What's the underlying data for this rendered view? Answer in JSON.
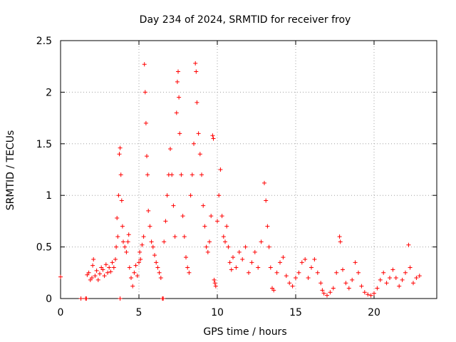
{
  "chart_data": {
    "type": "scatter",
    "title": "Day 234 of 2024, SRMTID for receiver froy",
    "xlabel": "GPS time / hours",
    "ylabel": "SRMTID / TECUs",
    "xlim": [
      0,
      24
    ],
    "ylim": [
      0,
      2.5
    ],
    "x_ticks": [
      0,
      5,
      10,
      15,
      20
    ],
    "x_tick_labels": [
      "0",
      "5",
      "10",
      "15",
      "20"
    ],
    "y_ticks": [
      0,
      0.5,
      1,
      1.5,
      2,
      2.5
    ],
    "y_tick_labels": [
      "0",
      "0.5",
      "1",
      "1.5",
      "2",
      "2.5"
    ],
    "grid": true,
    "marker": "+",
    "series": [
      {
        "name": "SRMTID",
        "color": "#ff0000",
        "points": [
          [
            0.0,
            0.21
          ],
          [
            1.3,
            0.0
          ],
          [
            1.6,
            0.0
          ],
          [
            1.65,
            0.0
          ],
          [
            1.7,
            0.23
          ],
          [
            1.8,
            0.25
          ],
          [
            1.9,
            0.18
          ],
          [
            2.0,
            0.2
          ],
          [
            2.05,
            0.32
          ],
          [
            2.1,
            0.38
          ],
          [
            2.2,
            0.22
          ],
          [
            2.3,
            0.27
          ],
          [
            2.4,
            0.18
          ],
          [
            2.5,
            0.24
          ],
          [
            2.6,
            0.3
          ],
          [
            2.7,
            0.28
          ],
          [
            2.8,
            0.22
          ],
          [
            2.9,
            0.33
          ],
          [
            3.0,
            0.25
          ],
          [
            3.1,
            0.3
          ],
          [
            3.2,
            0.26
          ],
          [
            3.3,
            0.35
          ],
          [
            3.4,
            0.3
          ],
          [
            3.5,
            0.38
          ],
          [
            3.55,
            0.5
          ],
          [
            3.6,
            0.78
          ],
          [
            3.65,
            0.6
          ],
          [
            3.7,
            1.0
          ],
          [
            3.75,
            1.4
          ],
          [
            3.8,
            1.46
          ],
          [
            3.85,
            1.2
          ],
          [
            3.9,
            0.95
          ],
          [
            3.95,
            0.7
          ],
          [
            3.8,
            0.0
          ],
          [
            4.0,
            0.55
          ],
          [
            4.1,
            0.5
          ],
          [
            4.2,
            0.45
          ],
          [
            4.3,
            0.55
          ],
          [
            4.35,
            0.62
          ],
          [
            4.4,
            0.3
          ],
          [
            4.5,
            0.2
          ],
          [
            4.6,
            0.12
          ],
          [
            4.7,
            0.25
          ],
          [
            4.8,
            0.32
          ],
          [
            4.9,
            0.22
          ],
          [
            5.0,
            0.35
          ],
          [
            5.05,
            0.45
          ],
          [
            5.1,
            0.38
          ],
          [
            5.2,
            0.52
          ],
          [
            5.3,
            0.6
          ],
          [
            5.35,
            2.27
          ],
          [
            5.4,
            2.0
          ],
          [
            5.45,
            1.7
          ],
          [
            5.5,
            1.38
          ],
          [
            5.55,
            1.2
          ],
          [
            5.6,
            0.85
          ],
          [
            5.7,
            0.7
          ],
          [
            5.8,
            0.55
          ],
          [
            5.9,
            0.5
          ],
          [
            6.0,
            0.42
          ],
          [
            6.1,
            0.35
          ],
          [
            6.2,
            0.3
          ],
          [
            6.3,
            0.25
          ],
          [
            6.4,
            0.2
          ],
          [
            6.5,
            0.0
          ],
          [
            6.55,
            0.0
          ],
          [
            6.6,
            0.55
          ],
          [
            6.7,
            0.75
          ],
          [
            6.8,
            1.0
          ],
          [
            6.9,
            1.2
          ],
          [
            7.0,
            1.45
          ],
          [
            7.1,
            1.2
          ],
          [
            7.2,
            0.9
          ],
          [
            7.3,
            0.6
          ],
          [
            7.4,
            1.8
          ],
          [
            7.45,
            2.1
          ],
          [
            7.5,
            2.2
          ],
          [
            7.55,
            1.95
          ],
          [
            7.6,
            1.6
          ],
          [
            7.7,
            1.2
          ],
          [
            7.8,
            0.8
          ],
          [
            7.9,
            0.6
          ],
          [
            8.0,
            0.4
          ],
          [
            8.1,
            0.3
          ],
          [
            8.2,
            0.25
          ],
          [
            8.3,
            1.0
          ],
          [
            8.4,
            1.2
          ],
          [
            8.5,
            1.5
          ],
          [
            8.6,
            2.28
          ],
          [
            8.65,
            2.2
          ],
          [
            8.7,
            1.9
          ],
          [
            8.8,
            1.6
          ],
          [
            8.9,
            1.4
          ],
          [
            9.0,
            1.2
          ],
          [
            9.1,
            0.9
          ],
          [
            9.2,
            0.7
          ],
          [
            9.3,
            0.5
          ],
          [
            9.4,
            0.45
          ],
          [
            9.5,
            0.55
          ],
          [
            9.6,
            0.8
          ],
          [
            9.7,
            1.58
          ],
          [
            9.75,
            1.55
          ],
          [
            9.8,
            0.18
          ],
          [
            9.85,
            0.15
          ],
          [
            9.9,
            0.12
          ],
          [
            10.0,
            0.75
          ],
          [
            10.1,
            1.0
          ],
          [
            10.2,
            1.25
          ],
          [
            10.3,
            0.8
          ],
          [
            10.4,
            0.6
          ],
          [
            10.5,
            0.55
          ],
          [
            10.6,
            0.7
          ],
          [
            10.7,
            0.5
          ],
          [
            10.8,
            0.35
          ],
          [
            10.9,
            0.28
          ],
          [
            11.0,
            0.4
          ],
          [
            11.2,
            0.3
          ],
          [
            11.4,
            0.45
          ],
          [
            11.6,
            0.38
          ],
          [
            11.8,
            0.5
          ],
          [
            12.0,
            0.25
          ],
          [
            12.2,
            0.35
          ],
          [
            12.4,
            0.45
          ],
          [
            12.6,
            0.3
          ],
          [
            12.8,
            0.55
          ],
          [
            13.0,
            1.12
          ],
          [
            13.1,
            0.95
          ],
          [
            13.2,
            0.7
          ],
          [
            13.3,
            0.5
          ],
          [
            13.4,
            0.3
          ],
          [
            13.5,
            0.1
          ],
          [
            13.6,
            0.08
          ],
          [
            13.8,
            0.25
          ],
          [
            14.0,
            0.35
          ],
          [
            14.2,
            0.4
          ],
          [
            14.4,
            0.22
          ],
          [
            14.6,
            0.15
          ],
          [
            14.8,
            0.12
          ],
          [
            15.0,
            0.2
          ],
          [
            15.2,
            0.25
          ],
          [
            15.4,
            0.35
          ],
          [
            15.6,
            0.38
          ],
          [
            15.8,
            0.2
          ],
          [
            16.0,
            0.3
          ],
          [
            16.2,
            0.38
          ],
          [
            16.4,
            0.25
          ],
          [
            16.6,
            0.15
          ],
          [
            16.7,
            0.08
          ],
          [
            16.8,
            0.05
          ],
          [
            17.0,
            0.03
          ],
          [
            17.2,
            0.06
          ],
          [
            17.4,
            0.1
          ],
          [
            17.6,
            0.25
          ],
          [
            17.8,
            0.6
          ],
          [
            17.85,
            0.55
          ],
          [
            18.0,
            0.28
          ],
          [
            18.2,
            0.15
          ],
          [
            18.4,
            0.1
          ],
          [
            18.6,
            0.18
          ],
          [
            18.8,
            0.35
          ],
          [
            19.0,
            0.25
          ],
          [
            19.2,
            0.12
          ],
          [
            19.4,
            0.06
          ],
          [
            19.6,
            0.04
          ],
          [
            19.8,
            0.03
          ],
          [
            20.0,
            0.05
          ],
          [
            20.2,
            0.1
          ],
          [
            20.4,
            0.18
          ],
          [
            20.6,
            0.25
          ],
          [
            20.8,
            0.15
          ],
          [
            21.0,
            0.2
          ],
          [
            21.2,
            0.28
          ],
          [
            21.4,
            0.2
          ],
          [
            21.6,
            0.12
          ],
          [
            21.8,
            0.18
          ],
          [
            22.0,
            0.25
          ],
          [
            22.2,
            0.52
          ],
          [
            22.3,
            0.3
          ],
          [
            22.5,
            0.15
          ],
          [
            22.7,
            0.2
          ],
          [
            22.9,
            0.22
          ]
        ]
      }
    ]
  }
}
